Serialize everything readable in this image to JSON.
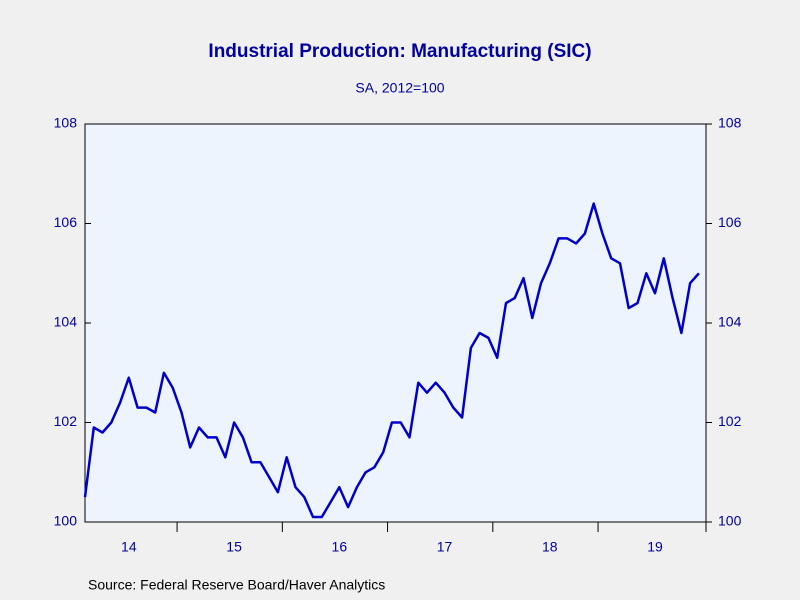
{
  "chart_data": {
    "type": "line",
    "title": "Industrial Production: Manufacturing (SIC)",
    "subtitle": "SA, 2012=100",
    "source": "Source:  Federal Reserve Board/Haver Analytics",
    "categories": [
      null,
      null,
      null,
      null,
      null,
      "14",
      null,
      null,
      null,
      null,
      null,
      null,
      null,
      null,
      null,
      null,
      null,
      "15",
      null,
      null,
      null,
      null,
      null,
      null,
      null,
      null,
      null,
      null,
      null,
      "16",
      null,
      null,
      null,
      null,
      null,
      null,
      null,
      null,
      null,
      null,
      null,
      "17",
      null,
      null,
      null,
      null,
      null,
      null,
      null,
      null,
      null,
      null,
      null,
      "18",
      null,
      null,
      null,
      null,
      null,
      null,
      null,
      null,
      null,
      null,
      null,
      "19",
      null,
      null,
      null,
      null,
      null
    ],
    "series": [
      {
        "color": "#0000c8",
        "values": [
          100.5,
          101.9,
          101.8,
          102.0,
          102.4,
          102.9,
          102.3,
          102.3,
          102.2,
          103.0,
          102.7,
          102.2,
          101.5,
          101.9,
          101.7,
          101.7,
          101.3,
          102.0,
          101.7,
          101.2,
          101.2,
          100.9,
          100.6,
          101.3,
          100.7,
          100.5,
          100.1,
          100.1,
          100.4,
          100.7,
          100.3,
          100.7,
          101.0,
          101.1,
          101.4,
          102.0,
          102.0,
          101.7,
          102.8,
          102.6,
          102.8,
          102.6,
          102.3,
          102.1,
          103.5,
          103.8,
          103.7,
          103.3,
          104.4,
          104.5,
          104.9,
          104.1,
          104.8,
          105.2,
          105.7,
          105.7,
          105.6,
          105.8,
          106.4,
          105.8,
          105.3,
          105.2,
          104.3,
          104.4,
          105.0,
          104.6,
          105.3,
          104.5,
          103.8,
          104.8,
          105.0
        ]
      }
    ],
    "ylim": [
      100,
      108
    ],
    "yticks": [
      100,
      102,
      104,
      106,
      108
    ],
    "y2lim": [
      100,
      108
    ],
    "y2ticks": [
      100,
      102,
      104,
      106,
      108
    ]
  }
}
